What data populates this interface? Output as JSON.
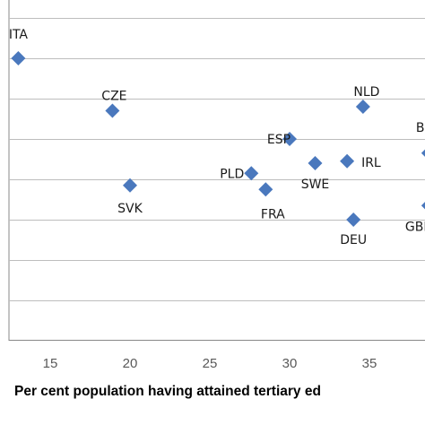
{
  "chart_data": {
    "type": "scatter",
    "xlabel": "Per cent population having attained tertiary ed",
    "ylabel": "",
    "xlim": [
      10,
      40
    ],
    "ylim": [
      0,
      8
    ],
    "x_ticks": [
      "15",
      "20",
      "25",
      "30",
      "35"
    ],
    "grid": "horizontal",
    "marker_color": "#4a78bd",
    "points": [
      {
        "label": "ITA",
        "x": 13.0,
        "y": 7.0
      },
      {
        "label": "CZE",
        "x": 18.9,
        "y": 5.7
      },
      {
        "label": "NLD",
        "x": 34.6,
        "y": 5.8
      },
      {
        "label": "ESP",
        "x": 30.0,
        "y": 5.0
      },
      {
        "label": "SWE",
        "x": 31.6,
        "y": 4.4
      },
      {
        "label": "IRL",
        "x": 33.6,
        "y": 4.45
      },
      {
        "label": "PLD",
        "x": 27.6,
        "y": 4.15
      },
      {
        "label": "SVK",
        "x": 20.0,
        "y": 3.85
      },
      {
        "label": "FRA",
        "x": 28.5,
        "y": 3.75
      },
      {
        "label": "DEU",
        "x": 34.0,
        "y": 3.0
      },
      {
        "label": "BEL",
        "x": 38.7,
        "y": 4.65
      },
      {
        "label": "GBR",
        "x": 38.7,
        "y": 3.35
      }
    ]
  }
}
